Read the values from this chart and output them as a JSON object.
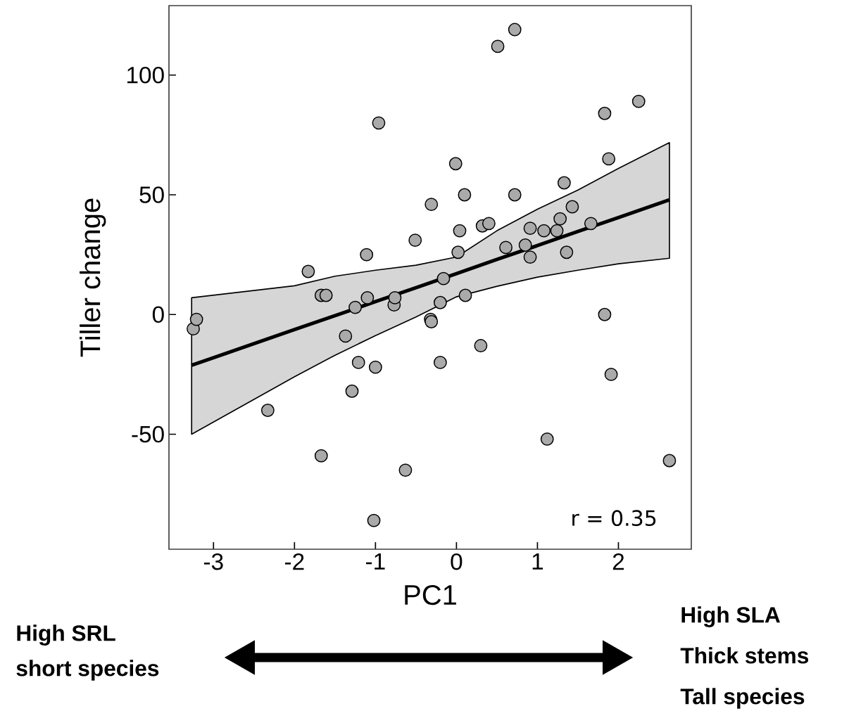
{
  "chart_data": {
    "type": "scatter",
    "xlabel": "PC1",
    "ylabel": "Tiller change",
    "xlim": [
      -3.55,
      2.9
    ],
    "ylim": [
      -98,
      129
    ],
    "xticks": [
      -3,
      -2,
      -1,
      0,
      1,
      2
    ],
    "yticks": [
      -50,
      0,
      50,
      100
    ],
    "annotations": [
      "r = 0.35",
      "High SRL",
      "short species",
      "High SLA",
      "Thick stems",
      "Tall species"
    ],
    "series": [
      {
        "type": "scatter",
        "marker": "circle",
        "color": "#aaaaaa",
        "x": [
          -3.25,
          -3.21,
          -2.33,
          -1.83,
          -1.67,
          -1.61,
          -1.67,
          -1.37,
          -1.29,
          -1.25,
          -1.21,
          -1.11,
          -1.1,
          -1.02,
          -1.0,
          -0.96,
          -0.77,
          -0.76,
          -0.63,
          -0.51,
          -0.32,
          -0.31,
          -0.31,
          -0.2,
          -0.2,
          -0.16,
          -0.01,
          0.02,
          0.04,
          0.1,
          0.11,
          0.3,
          0.32,
          0.4,
          0.51,
          0.61,
          0.72,
          0.72,
          0.85,
          0.91,
          0.91,
          1.08,
          1.12,
          1.24,
          1.28,
          1.33,
          1.36,
          1.43,
          1.66,
          1.83,
          1.83,
          1.88,
          1.91,
          2.25,
          2.63
        ],
        "values": [
          -6,
          -2,
          -40,
          18,
          8,
          8,
          -59,
          -9,
          -32,
          3,
          -20,
          25,
          7,
          -86,
          -22,
          80,
          4,
          7,
          -65,
          31,
          -2,
          -3,
          46,
          -20,
          5,
          15,
          63,
          26,
          35,
          50,
          8,
          -13,
          37,
          38,
          112,
          28,
          119,
          50,
          29,
          36,
          24,
          35,
          -52,
          35,
          40,
          55,
          26,
          45,
          38,
          84,
          0,
          65,
          -25,
          89,
          -61
        ]
      },
      {
        "type": "line",
        "marker": "none",
        "color": "#000000",
        "x": [
          -3.27,
          -2,
          -1.5,
          -1,
          -0.5,
          0,
          0.5,
          1,
          1.5,
          2,
          2.63
        ],
        "values": [
          -21.2,
          -6.3,
          -0.5,
          5.4,
          11.2,
          17.1,
          23,
          28.8,
          34.7,
          40.5,
          47.9
        ],
        "lower": [
          -50,
          -26,
          -17,
          -8.8,
          -1,
          7.4,
          11.8,
          15.6,
          18.5,
          21.2,
          23.5
        ],
        "upper": [
          7,
          12,
          16,
          18.5,
          20.6,
          24,
          35,
          44,
          52,
          61,
          71.8
        ]
      }
    ]
  }
}
